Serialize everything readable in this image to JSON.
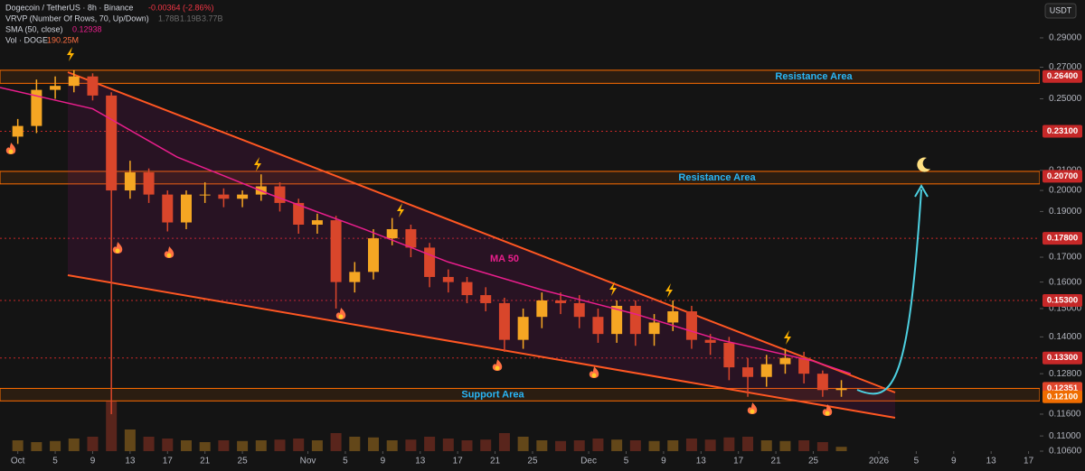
{
  "chart_data": {
    "type": "candlestick",
    "title": "Dogecoin / TetherUS · 8h · Binance",
    "change": "-0.00364 (-2.86%)",
    "indicators": [
      {
        "name": "VRVP (Number Of Rows, 70, Up/Down)",
        "values": [
          "1.78B",
          "1.19B",
          "3.77B"
        ]
      },
      {
        "name": "SMA (50, close)",
        "values": [
          "0.12938"
        ]
      },
      {
        "name": "Vol · DOGE",
        "values": [
          "190.25M"
        ]
      }
    ],
    "currency": "USDT",
    "x": [
      0,
      2,
      4,
      6,
      8,
      10,
      12,
      14,
      16,
      18,
      20,
      22,
      24,
      26,
      28,
      30,
      32,
      34,
      36,
      38,
      40,
      42,
      44,
      46,
      48,
      50,
      52,
      54,
      56,
      58,
      60,
      62,
      64,
      66,
      68,
      70,
      72,
      74,
      76,
      78,
      80,
      82,
      84,
      86,
      88
    ],
    "open": [
      0.228,
      0.234,
      0.2555,
      0.258,
      0.264,
      0.252,
      0.2,
      0.209,
      0.198,
      0.185,
      0.198,
      0.198,
      0.196,
      0.198,
      0.202,
      0.194,
      0.184,
      0.186,
      0.16,
      0.164,
      0.178,
      0.182,
      0.174,
      0.162,
      0.16,
      0.155,
      0.152,
      0.139,
      0.147,
      0.153,
      0.152,
      0.147,
      0.141,
      0.151,
      0.141,
      0.145,
      0.149,
      0.139,
      0.138,
      0.13,
      0.127,
      0.131,
      0.133,
      0.128,
      0.123
    ],
    "high": [
      0.238,
      0.262,
      0.264,
      0.268,
      0.266,
      0.254,
      0.215,
      0.211,
      0.2,
      0.2,
      0.204,
      0.201,
      0.2,
      0.208,
      0.204,
      0.196,
      0.189,
      0.188,
      0.168,
      0.182,
      0.187,
      0.184,
      0.176,
      0.165,
      0.162,
      0.158,
      0.154,
      0.15,
      0.156,
      0.156,
      0.155,
      0.15,
      0.153,
      0.153,
      0.148,
      0.153,
      0.151,
      0.141,
      0.14,
      0.133,
      0.134,
      0.136,
      0.135,
      0.129,
      0.126
    ],
    "low": [
      0.224,
      0.23,
      0.25,
      0.254,
      0.249,
      0.116,
      0.196,
      0.194,
      0.181,
      0.182,
      0.194,
      0.192,
      0.192,
      0.195,
      0.19,
      0.18,
      0.18,
      0.15,
      0.156,
      0.161,
      0.175,
      0.17,
      0.158,
      0.156,
      0.152,
      0.149,
      0.135,
      0.136,
      0.143,
      0.148,
      0.143,
      0.138,
      0.138,
      0.137,
      0.137,
      0.142,
      0.136,
      0.134,
      0.126,
      0.121,
      0.124,
      0.128,
      0.125,
      0.121,
      0.121
    ],
    "close": [
      0.234,
      0.2555,
      0.258,
      0.264,
      0.252,
      0.2,
      0.209,
      0.198,
      0.185,
      0.198,
      0.198,
      0.196,
      0.198,
      0.202,
      0.194,
      0.184,
      0.186,
      0.16,
      0.164,
      0.178,
      0.182,
      0.174,
      0.162,
      0.16,
      0.155,
      0.152,
      0.139,
      0.147,
      0.153,
      0.152,
      0.147,
      0.141,
      0.151,
      0.141,
      0.145,
      0.149,
      0.139,
      0.138,
      0.13,
      0.127,
      0.131,
      0.133,
      0.128,
      0.123,
      0.1235
    ],
    "up_color": "#f5a623",
    "down_color": "#d9462b",
    "volume": {
      "values": [
        300,
        250,
        280,
        350,
        400,
        1400,
        600,
        400,
        350,
        300,
        250,
        300,
        280,
        300,
        320,
        350,
        300,
        500,
        400,
        380,
        300,
        320,
        400,
        350,
        300,
        320,
        500,
        400,
        300,
        280,
        300,
        350,
        320,
        300,
        280,
        300,
        350,
        320,
        380,
        400,
        300,
        280,
        300,
        250,
        120
      ],
      "ylim": [
        0,
        1500
      ]
    },
    "ma": {
      "name": "MA 50",
      "color": "#e91e8c",
      "x": [
        -1.9,
        8,
        17,
        27,
        37,
        46,
        56,
        66,
        75,
        85,
        89
      ],
      "values": [
        0.257,
        0.244,
        0.217,
        0.198,
        0.182,
        0.168,
        0.157,
        0.148,
        0.139,
        0.132,
        0.128
      ]
    },
    "log_scale": true,
    "xlim": [
      -1.9,
      109.2
    ],
    "ylim": [
      0.106,
      0.318
    ],
    "xticks": [
      {
        "value": 0,
        "label": "Oct"
      },
      {
        "value": 4,
        "label": "5"
      },
      {
        "value": 8,
        "label": "9"
      },
      {
        "value": 12,
        "label": "13"
      },
      {
        "value": 16,
        "label": "17"
      },
      {
        "value": 20,
        "label": "21"
      },
      {
        "value": 24,
        "label": "25"
      },
      {
        "value": 31,
        "label": "Nov"
      },
      {
        "value": 35,
        "label": "5"
      },
      {
        "value": 39,
        "label": "9"
      },
      {
        "value": 43,
        "label": "13"
      },
      {
        "value": 47,
        "label": "17"
      },
      {
        "value": 51,
        "label": "21"
      },
      {
        "value": 55,
        "label": "25"
      },
      {
        "value": 61,
        "label": "Dec"
      },
      {
        "value": 65,
        "label": "5"
      },
      {
        "value": 69,
        "label": "9"
      },
      {
        "value": 73,
        "label": "13"
      },
      {
        "value": 77,
        "label": "17"
      },
      {
        "value": 81,
        "label": "21"
      },
      {
        "value": 85,
        "label": "25"
      },
      {
        "value": 92,
        "label": "2026"
      },
      {
        "value": 96,
        "label": "5"
      },
      {
        "value": 100,
        "label": "9"
      },
      {
        "value": 104,
        "label": "13"
      },
      {
        "value": 108,
        "label": "17"
      }
    ],
    "yticks": [
      {
        "value": 0.29,
        "label": "0.29000"
      },
      {
        "value": 0.27,
        "label": "0.27000"
      },
      {
        "value": 0.25,
        "label": "0.25000"
      },
      {
        "value": 0.21,
        "label": "0.21000"
      },
      {
        "value": 0.2,
        "label": "0.20000"
      },
      {
        "value": 0.19,
        "label": "0.19000"
      },
      {
        "value": 0.17,
        "label": "0.17000"
      },
      {
        "value": 0.16,
        "label": "0.16000"
      },
      {
        "value": 0.15,
        "label": "0.15000"
      },
      {
        "value": 0.14,
        "label": "0.14000"
      },
      {
        "value": 0.128,
        "label": "0.12800"
      },
      {
        "value": 0.116,
        "label": "0.11600"
      },
      {
        "value": 0.11,
        "label": "0.11000"
      },
      {
        "value": 0.106,
        "label": "0.10600"
      }
    ],
    "price_tags": [
      {
        "value": 0.264,
        "label": "0.26400",
        "color": "#c62828",
        "dotted": false
      },
      {
        "value": 0.231,
        "label": "0.23100",
        "color": "#c62828",
        "dotted": true
      },
      {
        "value": 0.207,
        "label": "0.20700",
        "color": "#c62828",
        "dotted": false
      },
      {
        "value": 0.178,
        "label": "0.17800",
        "color": "#c62828",
        "dotted": true
      },
      {
        "value": 0.153,
        "label": "0.15300",
        "color": "#c62828",
        "dotted": true
      },
      {
        "value": 0.133,
        "label": "0.13300",
        "color": "#c62828",
        "dotted": true
      },
      {
        "value": 0.12351,
        "label": "0.12351",
        "color": "#e0452b",
        "dotted": false
      },
      {
        "value": 0.121,
        "label": "0.12100",
        "color": "#ef6c00",
        "dotted": false
      }
    ],
    "zones": [
      {
        "label": "Resistance Area",
        "range": [
          0.2596,
          0.268
        ]
      },
      {
        "label": "Resistance Area",
        "range": [
          0.2032,
          0.2095
        ]
      },
      {
        "label": "Support Area",
        "range": [
          0.1198,
          0.1235
        ]
      }
    ]
  }
}
